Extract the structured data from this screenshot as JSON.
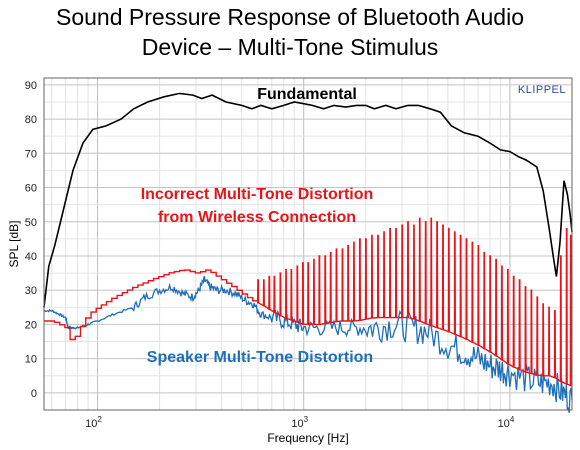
{
  "title_line1": "Sound Pressure Response of Bluetooth Audio",
  "title_line2": "Device – Multi-Tone Stimulus",
  "chart_data": {
    "type": "line",
    "title": "Sound Pressure Response of Bluetooth Audio Device – Multi-Tone Stimulus",
    "xlabel": "Frequency [Hz]",
    "ylabel": "SPL [dB]",
    "xscale": "log",
    "xlim": [
      55,
      20000
    ],
    "ylim": [
      -5,
      92
    ],
    "yticks": [
      0,
      10,
      20,
      30,
      40,
      50,
      60,
      70,
      80,
      90
    ],
    "xticks": [
      {
        "value": 100,
        "base": "10",
        "exp": "2"
      },
      {
        "value": 1000,
        "base": "10",
        "exp": "3"
      },
      {
        "value": 10000,
        "base": "10",
        "exp": "4"
      }
    ],
    "grid": true,
    "brand_label": "KLIPPEL",
    "annotations": [
      {
        "text": "Fundamental",
        "color": "#000000"
      },
      {
        "text": "Incorrect Multi-Tone Distortion",
        "color": "#e8141a"
      },
      {
        "text": "from Wireless Connection",
        "color": "#e8141a"
      },
      {
        "text": "Speaker Multi-Tone Distortion",
        "color": "#1e6fba"
      }
    ],
    "series": [
      {
        "name": "Fundamental",
        "color": "#000000",
        "points": [
          [
            55,
            25
          ],
          [
            58,
            37
          ],
          [
            62,
            43
          ],
          [
            68,
            53
          ],
          [
            76,
            65
          ],
          [
            85,
            73
          ],
          [
            95,
            77
          ],
          [
            110,
            78
          ],
          [
            130,
            80
          ],
          [
            150,
            83
          ],
          [
            175,
            85
          ],
          [
            210,
            86.5
          ],
          [
            250,
            87.5
          ],
          [
            290,
            87
          ],
          [
            320,
            86
          ],
          [
            360,
            87
          ],
          [
            420,
            85
          ],
          [
            500,
            84
          ],
          [
            560,
            83
          ],
          [
            620,
            84
          ],
          [
            700,
            83
          ],
          [
            800,
            84
          ],
          [
            900,
            85
          ],
          [
            1000,
            84.5
          ],
          [
            1100,
            84
          ],
          [
            1250,
            83
          ],
          [
            1400,
            84
          ],
          [
            1600,
            83.5
          ],
          [
            1800,
            84
          ],
          [
            2000,
            84
          ],
          [
            2200,
            83
          ],
          [
            2500,
            84
          ],
          [
            2800,
            83
          ],
          [
            3200,
            84
          ],
          [
            3600,
            84
          ],
          [
            4100,
            83
          ],
          [
            4600,
            82
          ],
          [
            5200,
            78
          ],
          [
            6000,
            76
          ],
          [
            7000,
            75
          ],
          [
            8000,
            73
          ],
          [
            9000,
            71
          ],
          [
            10000,
            70.5
          ],
          [
            11000,
            69
          ],
          [
            12000,
            68
          ],
          [
            13500,
            66
          ],
          [
            14500,
            59
          ],
          [
            15500,
            48
          ],
          [
            16300,
            39
          ],
          [
            16800,
            34
          ],
          [
            17500,
            44
          ],
          [
            18300,
            62
          ],
          [
            19000,
            58
          ],
          [
            19600,
            52
          ],
          [
            20000,
            47
          ]
        ]
      },
      {
        "name": "Incorrect Multi-Tone Distortion",
        "color": "#e8141a",
        "floor": [
          [
            55,
            21
          ],
          [
            60,
            21
          ],
          [
            65,
            20
          ],
          [
            70,
            19
          ],
          [
            72,
            16
          ],
          [
            76,
            15
          ],
          [
            80,
            18
          ],
          [
            90,
            23
          ],
          [
            100,
            25
          ],
          [
            120,
            28
          ],
          [
            150,
            31
          ],
          [
            180,
            33
          ],
          [
            220,
            35
          ],
          [
            260,
            36
          ],
          [
            300,
            35
          ],
          [
            340,
            36
          ],
          [
            400,
            33
          ],
          [
            450,
            31
          ],
          [
            500,
            29
          ],
          [
            560,
            27
          ],
          [
            620,
            26
          ],
          [
            700,
            24
          ],
          [
            800,
            22
          ],
          [
            900,
            21
          ],
          [
            1000,
            20
          ],
          [
            1200,
            20
          ],
          [
            1500,
            21
          ],
          [
            1800,
            21
          ],
          [
            2200,
            22
          ],
          [
            2700,
            22
          ],
          [
            3300,
            22
          ],
          [
            4000,
            20
          ],
          [
            5000,
            18
          ],
          [
            6000,
            16
          ],
          [
            7000,
            14
          ],
          [
            8000,
            12
          ],
          [
            9000,
            10
          ],
          [
            10000,
            8
          ],
          [
            12000,
            6
          ],
          [
            14000,
            5
          ],
          [
            16000,
            5
          ],
          [
            18000,
            3
          ],
          [
            20000,
            2
          ]
        ],
        "peaks": [
          [
            600,
            33
          ],
          [
            640,
            33
          ],
          [
            680,
            34
          ],
          [
            720,
            34
          ],
          [
            770,
            35
          ],
          [
            820,
            36
          ],
          [
            870,
            36
          ],
          [
            930,
            37
          ],
          [
            990,
            38
          ],
          [
            1050,
            38
          ],
          [
            1120,
            39
          ],
          [
            1190,
            40
          ],
          [
            1270,
            40
          ],
          [
            1350,
            41
          ],
          [
            1440,
            42
          ],
          [
            1540,
            42
          ],
          [
            1640,
            43
          ],
          [
            1750,
            44
          ],
          [
            1870,
            45
          ],
          [
            2000,
            45
          ],
          [
            2140,
            46
          ],
          [
            2290,
            46
          ],
          [
            2450,
            47
          ],
          [
            2620,
            48
          ],
          [
            2800,
            48
          ],
          [
            3000,
            49
          ],
          [
            3200,
            50
          ],
          [
            3420,
            49
          ],
          [
            3650,
            51
          ],
          [
            3900,
            50
          ],
          [
            4150,
            51
          ],
          [
            4430,
            50
          ],
          [
            4730,
            49
          ],
          [
            5050,
            48
          ],
          [
            5400,
            47
          ],
          [
            5760,
            46
          ],
          [
            6150,
            45
          ],
          [
            6570,
            44
          ],
          [
            7020,
            43
          ],
          [
            7500,
            41
          ],
          [
            8010,
            40
          ],
          [
            8560,
            39
          ],
          [
            9140,
            37
          ],
          [
            9760,
            36
          ],
          [
            10420,
            34
          ],
          [
            11130,
            33
          ],
          [
            11890,
            31
          ],
          [
            12700,
            30
          ],
          [
            13560,
            28
          ],
          [
            14480,
            26
          ],
          [
            15460,
            25
          ],
          [
            16510,
            24
          ],
          [
            17630,
            40
          ],
          [
            18830,
            48
          ],
          [
            19700,
            46
          ]
        ]
      },
      {
        "name": "Speaker Multi-Tone Distortion",
        "color": "#1e6fba",
        "points": [
          [
            55,
            24
          ],
          [
            60,
            24
          ],
          [
            65,
            23
          ],
          [
            70,
            22
          ],
          [
            72,
            19
          ],
          [
            76,
            19
          ],
          [
            80,
            19
          ],
          [
            90,
            20
          ],
          [
            100,
            21
          ],
          [
            120,
            23
          ],
          [
            150,
            25
          ],
          [
            170,
            28
          ],
          [
            200,
            30
          ],
          [
            230,
            31
          ],
          [
            260,
            29
          ],
          [
            290,
            28
          ],
          [
            310,
            30
          ],
          [
            330,
            33
          ],
          [
            350,
            31
          ],
          [
            380,
            30
          ],
          [
            420,
            30
          ],
          [
            470,
            29
          ],
          [
            520,
            27
          ],
          [
            570,
            26
          ],
          [
            620,
            23
          ],
          [
            700,
            22
          ],
          [
            800,
            21
          ],
          [
            900,
            20
          ],
          [
            1000,
            19
          ],
          [
            1200,
            19
          ],
          [
            1500,
            19
          ],
          [
            1800,
            19
          ],
          [
            2200,
            19
          ],
          [
            2700,
            20
          ],
          [
            3300,
            19
          ],
          [
            4000,
            18
          ],
          [
            5000,
            14
          ],
          [
            6000,
            12
          ],
          [
            7000,
            10
          ],
          [
            8000,
            8
          ],
          [
            9000,
            7
          ],
          [
            10000,
            6
          ],
          [
            12000,
            4
          ],
          [
            14000,
            3
          ],
          [
            16000,
            3
          ],
          [
            18000,
            0
          ],
          [
            20000,
            -2
          ]
        ]
      }
    ]
  }
}
